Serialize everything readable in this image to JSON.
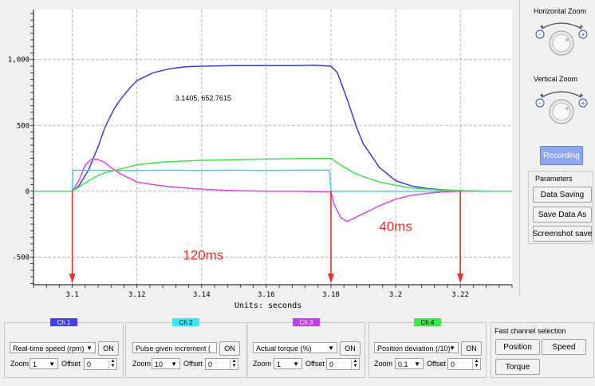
{
  "chart_data": {
    "type": "line",
    "xlabel": "Units: seconds",
    "ylabel": "",
    "xlim": [
      3.088,
      3.236
    ],
    "ylim": [
      -710,
      1380
    ],
    "x_ticks": [
      3.1,
      3.12,
      3.14,
      3.16,
      3.18,
      3.2,
      3.22
    ],
    "x_tick_labels": [
      "3.1",
      "3.12",
      "3.14",
      "3.16",
      "3.18",
      "3.2",
      "3.22"
    ],
    "y_ticks": [
      -500,
      0,
      500,
      1000
    ],
    "y_tick_labels": [
      "-500",
      "0",
      "500",
      "1,000"
    ],
    "grid": true,
    "series": [
      {
        "color": "#3b3bd6",
        "x": [
          3.088,
          3.1,
          3.102,
          3.105,
          3.108,
          3.11,
          3.113,
          3.115,
          3.118,
          3.12,
          3.125,
          3.13,
          3.135,
          3.14,
          3.15,
          3.16,
          3.17,
          3.175,
          3.18,
          3.182,
          3.185,
          3.188,
          3.19,
          3.195,
          3.2,
          3.205,
          3.21,
          3.215,
          3.22,
          3.225
        ],
        "y": [
          0,
          0,
          40,
          160,
          340,
          480,
          630,
          700,
          790,
          840,
          900,
          930,
          945,
          950,
          955,
          955,
          955,
          958,
          950,
          900,
          700,
          480,
          360,
          180,
          80,
          40,
          20,
          10,
          5,
          0
        ]
      },
      {
        "color": "#30d9e6",
        "x": [
          3.088,
          3.1,
          3.1002,
          3.11,
          3.12,
          3.13,
          3.14,
          3.15,
          3.16,
          3.17,
          3.1795,
          3.18,
          3.19,
          3.2,
          3.21,
          3.22,
          3.236
        ],
        "y": [
          0,
          0,
          160,
          158,
          158,
          160,
          158,
          160,
          158,
          160,
          160,
          0,
          0,
          0,
          0,
          0,
          0
        ]
      },
      {
        "color": "#e344e3",
        "x": [
          3.088,
          3.1,
          3.102,
          3.104,
          3.106,
          3.108,
          3.11,
          3.112,
          3.115,
          3.12,
          3.125,
          3.13,
          3.14,
          3.15,
          3.16,
          3.17,
          3.18,
          3.181,
          3.183,
          3.185,
          3.19,
          3.195,
          3.2,
          3.205,
          3.21,
          3.215,
          3.22,
          3.225
        ],
        "y": [
          0,
          0,
          80,
          200,
          245,
          240,
          220,
          180,
          130,
          70,
          50,
          35,
          15,
          5,
          0,
          0,
          -5,
          -100,
          -200,
          -230,
          -170,
          -110,
          -60,
          -30,
          -15,
          -5,
          0,
          0
        ]
      },
      {
        "color": "#3fe24a",
        "x": [
          3.088,
          3.1,
          3.102,
          3.105,
          3.108,
          3.11,
          3.115,
          3.12,
          3.125,
          3.13,
          3.14,
          3.15,
          3.16,
          3.17,
          3.18,
          3.183,
          3.187,
          3.19,
          3.195,
          3.2,
          3.205,
          3.21,
          3.215,
          3.22,
          3.23,
          3.236
        ],
        "y": [
          0,
          0,
          30,
          80,
          120,
          140,
          170,
          200,
          215,
          225,
          235,
          240,
          245,
          248,
          250,
          200,
          140,
          110,
          70,
          45,
          25,
          15,
          8,
          5,
          0,
          0
        ]
      }
    ],
    "annotations": [
      {
        "text": "3.1405, 652.7615",
        "x": 3.1405,
        "y": 690
      },
      {
        "text": "120ms",
        "x": 3.1405,
        "y": -520
      },
      {
        "text": "40ms",
        "x": 3.2,
        "y": -300
      }
    ],
    "markers": [
      {
        "x": 3.1,
        "y_from": 0,
        "color": "#e8302c"
      },
      {
        "x": 3.18,
        "y_from": 0,
        "color": "#e8302c"
      },
      {
        "x": 3.22,
        "y_from": 0,
        "color": "#e8302c"
      }
    ]
  },
  "right_panel": {
    "horizontal_zoom_label": "Horizontal Zoom",
    "vertical_zoom_label": "Vertical Zoom",
    "recording_button": "Recording",
    "parameters_label": "Parameters",
    "data_saving_button": "Data Saving",
    "save_data_as_button": "Save Data As",
    "screenshot_save_button": "Screenshot save"
  },
  "channels": [
    {
      "tag": "Ch 1",
      "tag_color": "#3f3ff0",
      "signal": "Real-time speed (rpm)",
      "on_label": "ON",
      "zoom_label": "Zoom",
      "zoom": "1",
      "offset_label": "Offset",
      "offset": "0"
    },
    {
      "tag": "Ch 2",
      "tag_color": "#38e8f2",
      "signal": "Pulse given increment (",
      "on_label": "ON",
      "zoom_label": "Zoom",
      "zoom": "10",
      "offset_label": "Offset",
      "offset": "0"
    },
    {
      "tag": "Ch 3",
      "tag_color": "#c23ff0",
      "signal": "Actual torque (%)",
      "on_label": "ON",
      "zoom_label": "Zoom",
      "zoom": "1",
      "offset_label": "Offset",
      "offset": "0"
    },
    {
      "tag": "Ch 4",
      "tag_color": "#3fe84a",
      "signal": "Position deviation (/10)",
      "on_label": "ON",
      "zoom_label": "Zoom",
      "zoom": "0.1",
      "offset_label": "Offset",
      "offset": "0"
    }
  ],
  "fast_channel": {
    "label": "Fast channel selection",
    "position_button": "Position",
    "speed_button": "Speed",
    "torque_button": "Torque"
  }
}
